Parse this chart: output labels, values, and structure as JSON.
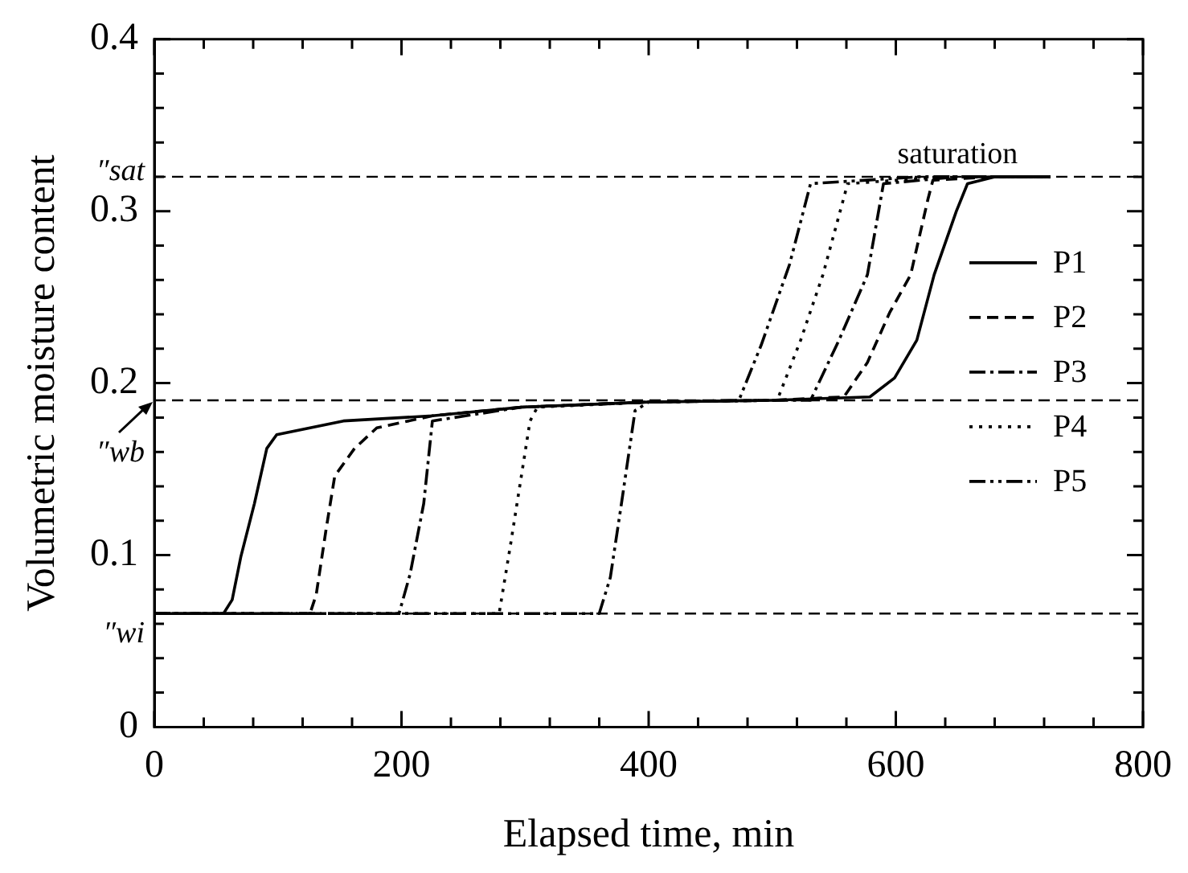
{
  "chart_data": {
    "type": "line",
    "xlabel": "Elapsed time, min",
    "ylabel": "Volumetric moisture content",
    "xlim": [
      0,
      800
    ],
    "ylim": [
      0,
      0.4
    ],
    "xticks": [
      0,
      {
        "value": 40,
        "label": null
      },
      {
        "value": 80,
        "label": null
      },
      {
        "value": 120,
        "label": null
      },
      {
        "value": 160,
        "label": null
      },
      200,
      {
        "value": 240,
        "label": null
      },
      {
        "value": 280,
        "label": null
      },
      {
        "value": 320,
        "label": null
      },
      {
        "value": 360,
        "label": null
      },
      400,
      {
        "value": 440,
        "label": null
      },
      {
        "value": 480,
        "label": null
      },
      {
        "value": 520,
        "label": null
      },
      {
        "value": 560,
        "label": null
      },
      600,
      {
        "value": 640,
        "label": null
      },
      {
        "value": 680,
        "label": null
      },
      {
        "value": 720,
        "label": null
      },
      {
        "value": 760,
        "label": null
      },
      800
    ],
    "yticks": [
      0,
      {
        "value": 0.02,
        "label": null
      },
      {
        "value": 0.04,
        "label": null
      },
      {
        "value": 0.06,
        "label": null
      },
      {
        "value": 0.08,
        "label": null
      },
      0.1,
      {
        "value": 0.12,
        "label": null
      },
      {
        "value": 0.14,
        "label": null
      },
      {
        "value": 0.16,
        "label": null
      },
      {
        "value": 0.18,
        "label": null
      },
      0.2,
      {
        "value": 0.22,
        "label": null
      },
      {
        "value": 0.24,
        "label": null
      },
      {
        "value": 0.26,
        "label": null
      },
      {
        "value": 0.28,
        "label": null
      },
      0.3,
      {
        "value": 0.32,
        "label": null
      },
      {
        "value": 0.34,
        "label": null
      },
      {
        "value": 0.36,
        "label": null
      },
      {
        "value": 0.38,
        "label": null
      },
      0.4
    ],
    "grid": false,
    "legend": "right",
    "marker": "none",
    "ref_lines": [
      {
        "axis": "y",
        "value": 0.32,
        "label": "″sat",
        "line_style": "dashed",
        "color": "#000000"
      },
      {
        "axis": "y",
        "value": 0.19,
        "label": "″wb",
        "line_style": "dashed",
        "color": "#000000"
      },
      {
        "axis": "y",
        "value": 0.066,
        "label": "″wi",
        "line_style": "dashed",
        "color": "#000000"
      }
    ],
    "annotations": [
      {
        "text": "saturation",
        "x": 650,
        "y": 0.32
      }
    ],
    "series": [
      {
        "name": "P1",
        "color": "#000000",
        "line_style": "solid",
        "x": [
          0,
          56,
          63,
          70,
          81,
          91,
          99,
          153,
          225,
          297,
          400,
          500,
          579,
          599,
          617,
          631,
          649,
          658,
          680,
          725
        ],
        "values": [
          0.066,
          0.066,
          0.074,
          0.099,
          0.13,
          0.162,
          0.17,
          0.178,
          0.181,
          0.186,
          0.189,
          0.19,
          0.192,
          0.203,
          0.225,
          0.263,
          0.3,
          0.316,
          0.32,
          0.32
        ]
      },
      {
        "name": "P2",
        "color": "#000000",
        "line_style": "dashed",
        "x": [
          0,
          126,
          131,
          139,
          146,
          162,
          180,
          225,
          297,
          400,
          500,
          558,
          577,
          595,
          612,
          626,
          630,
          680,
          725
        ],
        "values": [
          0.066,
          0.066,
          0.077,
          0.115,
          0.146,
          0.162,
          0.174,
          0.181,
          0.186,
          0.189,
          0.19,
          0.192,
          0.212,
          0.241,
          0.263,
          0.307,
          0.318,
          0.32,
          0.32
        ]
      },
      {
        "name": "P3",
        "color": "#000000",
        "line_style": "dashdot",
        "x": [
          0,
          198,
          207,
          218,
          225,
          297,
          400,
          500,
          531,
          554,
          577,
          590,
          650,
          725
        ],
        "values": [
          0.066,
          0.066,
          0.089,
          0.13,
          0.178,
          0.186,
          0.189,
          0.19,
          0.19,
          0.225,
          0.263,
          0.316,
          0.32,
          0.32
        ]
      },
      {
        "name": "P4",
        "color": "#000000",
        "line_style": "dotted",
        "x": [
          0,
          279,
          288,
          297,
          304,
          310,
          400,
          504,
          523,
          541,
          561,
          640,
          725
        ],
        "values": [
          0.066,
          0.066,
          0.105,
          0.146,
          0.178,
          0.186,
          0.189,
          0.19,
          0.225,
          0.263,
          0.316,
          0.32,
          0.32
        ]
      },
      {
        "name": "P5",
        "color": "#000000",
        "line_style": "dashdotdot",
        "x": [
          0,
          360,
          369,
          378,
          389,
          400,
          473,
          491,
          514,
          531,
          620,
          725
        ],
        "values": [
          0.066,
          0.066,
          0.087,
          0.13,
          0.184,
          0.189,
          0.19,
          0.222,
          0.269,
          0.316,
          0.32,
          0.32
        ]
      }
    ]
  }
}
